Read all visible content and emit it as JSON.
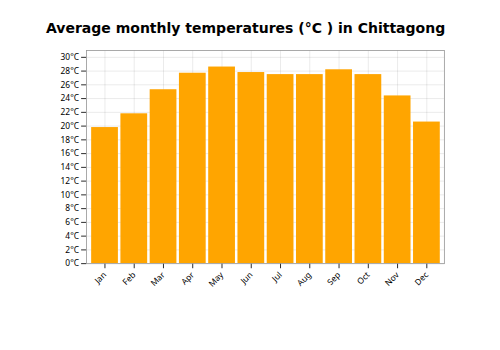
{
  "chart_data": {
    "type": "bar",
    "title": "Average monthly temperatures (°C ) in Chittagong",
    "categories": [
      "Jan",
      "Feb",
      "Mar",
      "Apr",
      "May",
      "Jun",
      "Jul",
      "Aug",
      "Sep",
      "Oct",
      "Nov",
      "Dec"
    ],
    "values": [
      19.8,
      21.8,
      25.3,
      27.7,
      28.6,
      27.8,
      27.5,
      27.5,
      28.2,
      27.5,
      24.4,
      20.6
    ],
    "color": "#FFA500",
    "ylim": [
      0,
      31
    ],
    "yticks": [
      {
        "value": 0,
        "label": "0°C"
      },
      {
        "value": 2,
        "label": "2°C"
      },
      {
        "value": 4,
        "label": "4°C"
      },
      {
        "value": 6,
        "label": "6°C"
      },
      {
        "value": 8,
        "label": "8°C"
      },
      {
        "value": 10,
        "label": "10°C"
      },
      {
        "value": 12,
        "label": "12°C"
      },
      {
        "value": 14,
        "label": "14°C"
      },
      {
        "value": 16,
        "label": "16°C"
      },
      {
        "value": 18,
        "label": "18°C"
      },
      {
        "value": 20,
        "label": "20°C"
      },
      {
        "value": 22,
        "label": "22°C"
      },
      {
        "value": 24,
        "label": "24°C"
      },
      {
        "value": 26,
        "label": "26°C"
      },
      {
        "value": 28,
        "label": "28°C"
      },
      {
        "value": 30,
        "label": "30°C"
      }
    ],
    "grid": true
  }
}
